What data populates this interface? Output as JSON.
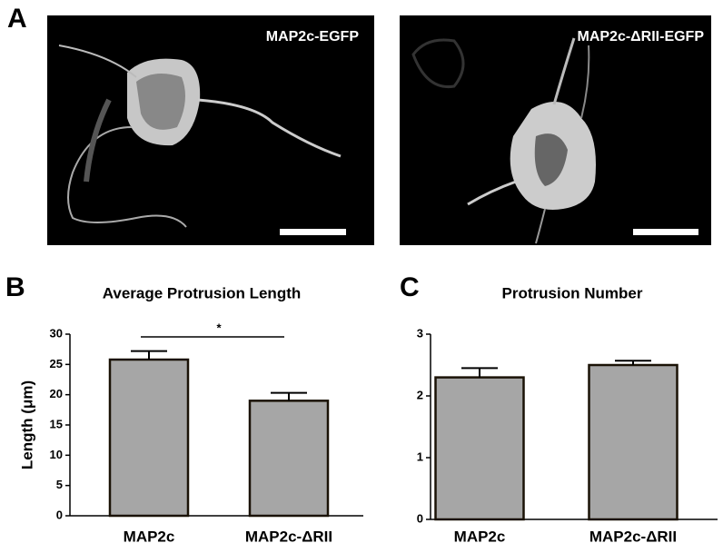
{
  "panel_labels": [
    "A",
    "B",
    "C"
  ],
  "images": [
    {
      "label": "MAP2c-EGFP"
    },
    {
      "label": "MAP2c-ΔRII-EGFP"
    }
  ],
  "chart_data": [
    {
      "type": "bar",
      "title": "Average Protrusion Length",
      "y_label": "Length (μm)",
      "categories": [
        "MAP2c",
        "MAP2c-ΔRII"
      ],
      "values": [
        25.8,
        19.0
      ],
      "errors": [
        1.4,
        1.3
      ],
      "color": "#a6a6a6",
      "ylim": [
        0,
        30
      ],
      "yticks": [
        0,
        5,
        10,
        15,
        20,
        25,
        30
      ],
      "annotation": "*"
    },
    {
      "type": "bar",
      "title": "Protrusion Number",
      "categories": [
        "MAP2c",
        "MAP2c-ΔRII"
      ],
      "values": [
        2.3,
        2.5
      ],
      "errors": [
        0.15,
        0.07
      ],
      "color": "#a6a6a6",
      "ylim": [
        0,
        3
      ],
      "yticks": [
        0,
        1,
        2,
        3
      ]
    }
  ]
}
